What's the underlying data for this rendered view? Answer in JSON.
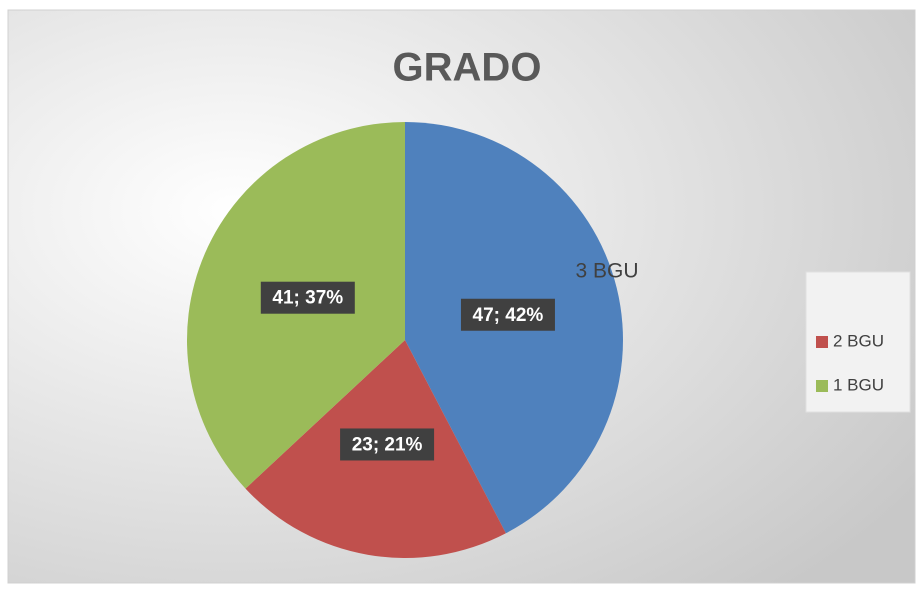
{
  "chart_data": {
    "type": "pie",
    "title": "GRADO",
    "categories": [
      "3 BGU",
      "2 BGU",
      "1 BGU"
    ],
    "values": [
      47,
      23,
      41
    ],
    "value_labels": [
      "47; 42%",
      "23; 21%",
      "41; 37%"
    ],
    "colors": [
      "#4f81bd",
      "#c0504d",
      "#9bbb59"
    ],
    "legend": "right"
  }
}
